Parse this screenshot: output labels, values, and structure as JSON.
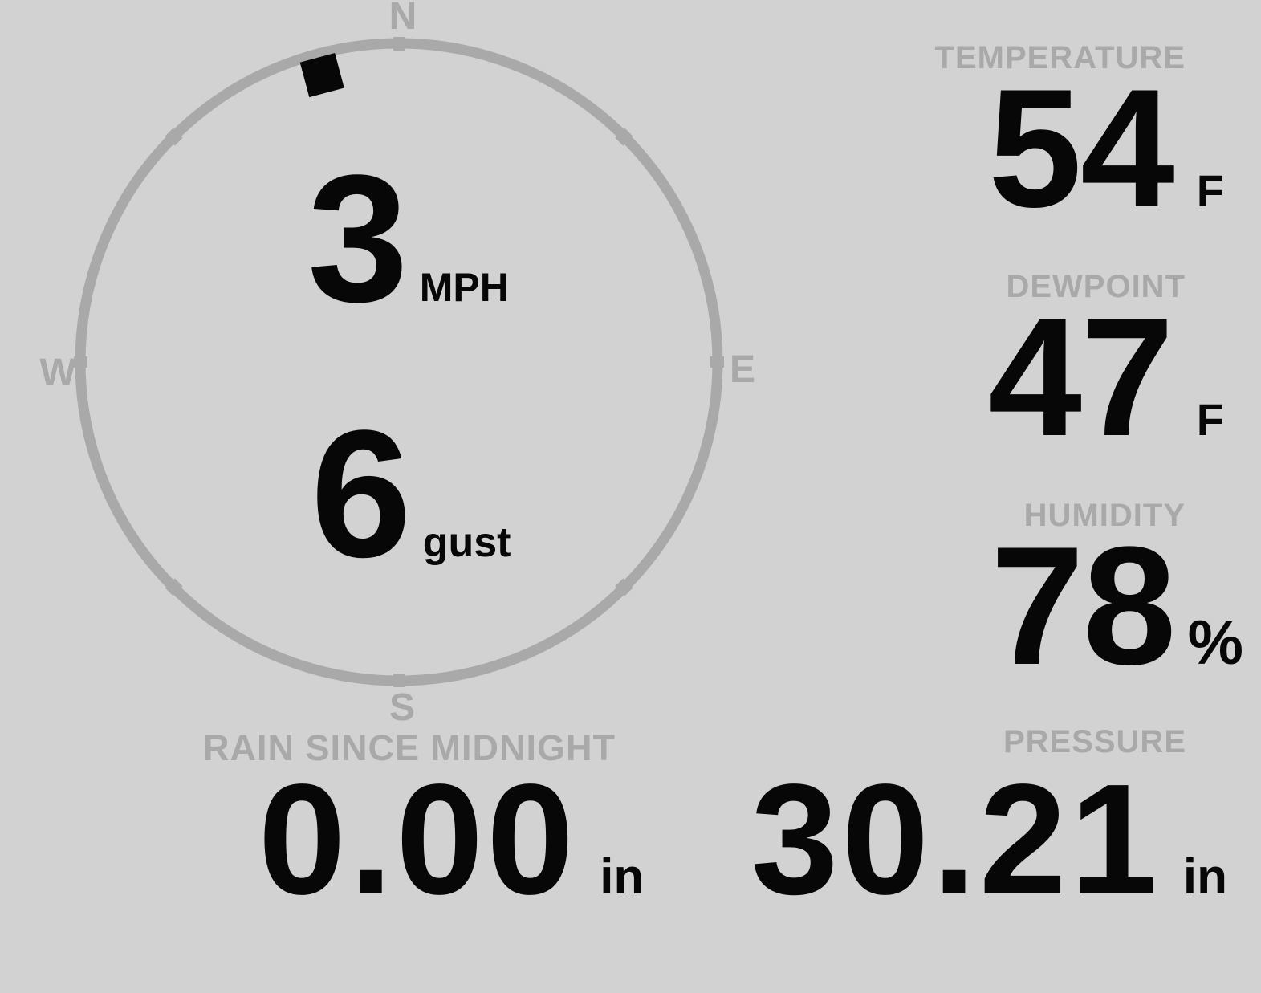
{
  "colors": {
    "background": "#d2d2d2",
    "muted_gray": "#a9a9a9",
    "ink": "#070707"
  },
  "wind": {
    "speed": "3",
    "speed_unit": "MPH",
    "gust": "6",
    "gust_unit": "gust",
    "direction_degrees": 345,
    "compass": {
      "north": "N",
      "south": "S",
      "east": "E",
      "west": "W"
    }
  },
  "metrics": {
    "temperature": {
      "label": "TEMPERATURE",
      "value": "54",
      "unit": "F"
    },
    "dewpoint": {
      "label": "DEWPOINT",
      "value": "47",
      "unit": "F"
    },
    "humidity": {
      "label": "HUMIDITY",
      "value": "78",
      "unit": "%"
    },
    "rain": {
      "label": "RAIN SINCE MIDNIGHT",
      "value": "0.00",
      "unit": "in"
    },
    "pressure": {
      "label": "PRESSURE",
      "value": "30.21",
      "unit": "in"
    }
  }
}
